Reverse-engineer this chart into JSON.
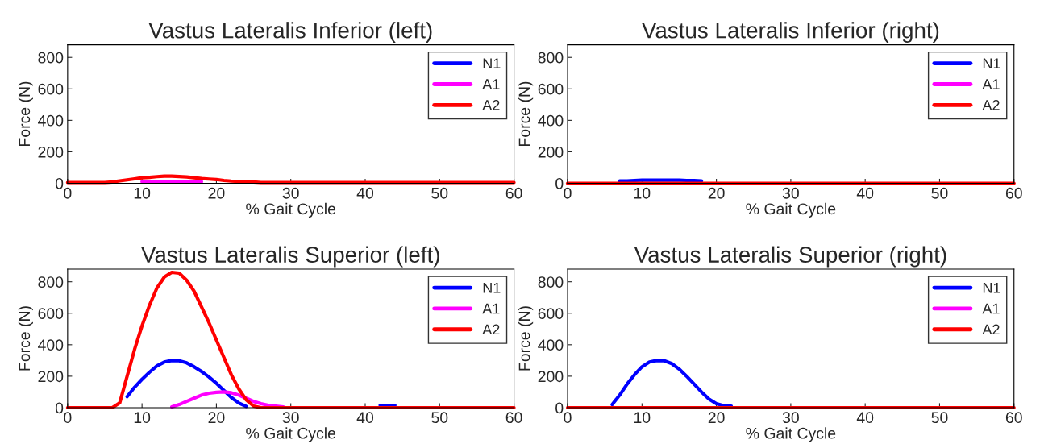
{
  "chart_data": [
    {
      "type": "line",
      "title": "Vastus Lateralis Inferior (left)",
      "xlabel": "% Gait Cycle",
      "ylabel": "Force (N)",
      "xlim": [
        0,
        60
      ],
      "ylim": [
        0,
        880
      ],
      "xticks": [
        0,
        10,
        20,
        30,
        40,
        50,
        60
      ],
      "yticks": [
        0,
        200,
        400,
        600,
        800
      ],
      "legend": "top right",
      "grid": false,
      "x": [
        0,
        5,
        6,
        7,
        8,
        9,
        10,
        11,
        12,
        13,
        14,
        15,
        16,
        17,
        18,
        19,
        20,
        21,
        22,
        23,
        24,
        25,
        26,
        27,
        28,
        29,
        30,
        35,
        40,
        42,
        44,
        46,
        50,
        51,
        52,
        55,
        60
      ],
      "series": [
        {
          "name": "N1",
          "color": "#0000ff",
          "values": [
            null,
            null,
            null,
            null,
            null,
            null,
            null,
            null,
            null,
            null,
            null,
            null,
            null,
            null,
            null,
            null,
            null,
            null,
            null,
            null,
            null,
            null,
            null,
            null,
            null,
            null,
            null,
            null,
            null,
            null,
            null,
            null,
            null,
            null,
            null,
            null,
            null
          ]
        },
        {
          "name": "A1",
          "color": "#ff00ff",
          "values": [
            null,
            null,
            null,
            null,
            null,
            null,
            10,
            10,
            12,
            12,
            12,
            12,
            12,
            12,
            10,
            null,
            null,
            null,
            null,
            null,
            null,
            null,
            null,
            null,
            null,
            null,
            null,
            null,
            null,
            null,
            null,
            null,
            null,
            null,
            null,
            null,
            null
          ]
        },
        {
          "name": "A2",
          "color": "#ff0000",
          "values": [
            5,
            5,
            8,
            15,
            22,
            28,
            35,
            38,
            42,
            45,
            45,
            43,
            40,
            35,
            30,
            27,
            24,
            18,
            14,
            12,
            10,
            8,
            5,
            5,
            5,
            5,
            5,
            5,
            5,
            5,
            5,
            5,
            5,
            5,
            5,
            5,
            5
          ]
        }
      ]
    },
    {
      "type": "line",
      "title": "Vastus Lateralis Inferior (right)",
      "xlabel": "% Gait Cycle",
      "ylabel": "Force (N)",
      "xlim": [
        0,
        60
      ],
      "ylim": [
        0,
        880
      ],
      "xticks": [
        0,
        10,
        20,
        30,
        40,
        50,
        60
      ],
      "yticks": [
        0,
        200,
        400,
        600,
        800
      ],
      "legend": "top right",
      "grid": false,
      "x": [
        0,
        5,
        6,
        7,
        8,
        9,
        10,
        11,
        12,
        13,
        14,
        15,
        16,
        17,
        18,
        19,
        20,
        21,
        22,
        23,
        24,
        25,
        26,
        27,
        28,
        29,
        30,
        35,
        40,
        42,
        44,
        46,
        50,
        51,
        52,
        55,
        60
      ],
      "series": [
        {
          "name": "N1",
          "color": "#0000ff",
          "values": [
            null,
            null,
            null,
            15,
            15,
            18,
            20,
            20,
            20,
            20,
            20,
            20,
            18,
            18,
            15,
            null,
            null,
            null,
            null,
            null,
            null,
            null,
            null,
            null,
            null,
            null,
            null,
            null,
            null,
            null,
            null,
            null,
            null,
            null,
            null,
            null,
            null
          ]
        },
        {
          "name": "A1",
          "color": "#ff00ff",
          "values": [
            null,
            null,
            null,
            null,
            null,
            null,
            null,
            null,
            null,
            null,
            null,
            null,
            null,
            null,
            null,
            null,
            null,
            null,
            null,
            null,
            null,
            null,
            null,
            null,
            null,
            null,
            null,
            null,
            null,
            null,
            null,
            null,
            null,
            null,
            null,
            null,
            null
          ]
        },
        {
          "name": "A2",
          "color": "#ff0000",
          "values": [
            0,
            0,
            0,
            0,
            0,
            0,
            0,
            0,
            0,
            0,
            0,
            0,
            0,
            0,
            0,
            0,
            0,
            0,
            0,
            0,
            0,
            0,
            0,
            0,
            0,
            0,
            0,
            0,
            0,
            0,
            0,
            0,
            0,
            0,
            0,
            0,
            0
          ]
        }
      ]
    },
    {
      "type": "line",
      "title": "Vastus Lateralis Superior (left)",
      "xlabel": "% Gait Cycle",
      "ylabel": "Force (N)",
      "xlim": [
        0,
        60
      ],
      "ylim": [
        0,
        880
      ],
      "xticks": [
        0,
        10,
        20,
        30,
        40,
        50,
        60
      ],
      "yticks": [
        0,
        200,
        400,
        600,
        800
      ],
      "legend": "top right",
      "grid": false,
      "x": [
        0,
        5,
        6,
        7,
        8,
        9,
        10,
        11,
        12,
        13,
        14,
        15,
        16,
        17,
        18,
        19,
        20,
        21,
        22,
        23,
        24,
        25,
        26,
        27,
        28,
        29,
        30,
        35,
        40,
        42,
        44,
        46,
        50,
        51,
        52,
        55,
        60
      ],
      "series": [
        {
          "name": "N1",
          "color": "#0000ff",
          "values": [
            null,
            null,
            null,
            null,
            70,
            130,
            180,
            225,
            265,
            290,
            300,
            298,
            285,
            260,
            230,
            195,
            155,
            110,
            65,
            30,
            8,
            null,
            null,
            null,
            null,
            null,
            null,
            null,
            null,
            15,
            15,
            null,
            null,
            null,
            null,
            null,
            null
          ]
        },
        {
          "name": "A1",
          "color": "#ff00ff",
          "values": [
            null,
            null,
            null,
            null,
            null,
            null,
            null,
            null,
            null,
            null,
            5,
            20,
            40,
            60,
            80,
            92,
            98,
            100,
            95,
            80,
            60,
            40,
            25,
            15,
            10,
            5,
            null,
            null,
            null,
            null,
            null,
            null,
            null,
            null,
            null,
            null,
            null
          ]
        },
        {
          "name": "A2",
          "color": "#ff0000",
          "values": [
            0,
            0,
            0,
            30,
            200,
            370,
            520,
            650,
            760,
            830,
            860,
            855,
            810,
            740,
            640,
            540,
            430,
            320,
            210,
            120,
            50,
            10,
            0,
            0,
            0,
            0,
            0,
            0,
            0,
            0,
            0,
            0,
            0,
            0,
            0,
            0,
            0
          ]
        }
      ]
    },
    {
      "type": "line",
      "title": "Vastus Lateralis Superior (right)",
      "xlabel": "% Gait Cycle",
      "ylabel": "Force (N)",
      "xlim": [
        0,
        60
      ],
      "ylim": [
        0,
        880
      ],
      "xticks": [
        0,
        10,
        20,
        30,
        40,
        50,
        60
      ],
      "yticks": [
        0,
        200,
        400,
        600,
        800
      ],
      "legend": "top right",
      "grid": false,
      "x": [
        0,
        5,
        6,
        7,
        8,
        9,
        10,
        11,
        12,
        13,
        14,
        15,
        16,
        17,
        18,
        19,
        20,
        21,
        22,
        23,
        24,
        25,
        26,
        27,
        28,
        29,
        30,
        35,
        40,
        42,
        44,
        46,
        50,
        51,
        52,
        55,
        60
      ],
      "series": [
        {
          "name": "N1",
          "color": "#0000ff",
          "values": [
            null,
            null,
            20,
            80,
            150,
            210,
            260,
            290,
            300,
            298,
            280,
            245,
            200,
            150,
            100,
            55,
            25,
            12,
            10,
            null,
            null,
            null,
            null,
            null,
            null,
            null,
            null,
            null,
            null,
            null,
            null,
            null,
            null,
            null,
            null,
            null,
            null
          ]
        },
        {
          "name": "A1",
          "color": "#ff00ff",
          "values": [
            null,
            null,
            null,
            null,
            null,
            null,
            null,
            null,
            null,
            null,
            null,
            null,
            null,
            null,
            null,
            null,
            null,
            null,
            null,
            null,
            null,
            null,
            null,
            null,
            null,
            null,
            null,
            null,
            null,
            null,
            null,
            null,
            null,
            null,
            null,
            null,
            null
          ]
        },
        {
          "name": "A2",
          "color": "#ff0000",
          "values": [
            0,
            0,
            0,
            0,
            0,
            0,
            0,
            0,
            0,
            0,
            0,
            0,
            0,
            0,
            0,
            0,
            0,
            0,
            0,
            0,
            0,
            0,
            0,
            0,
            0,
            0,
            0,
            0,
            0,
            0,
            0,
            0,
            0,
            0,
            0,
            0,
            0
          ]
        }
      ]
    }
  ]
}
